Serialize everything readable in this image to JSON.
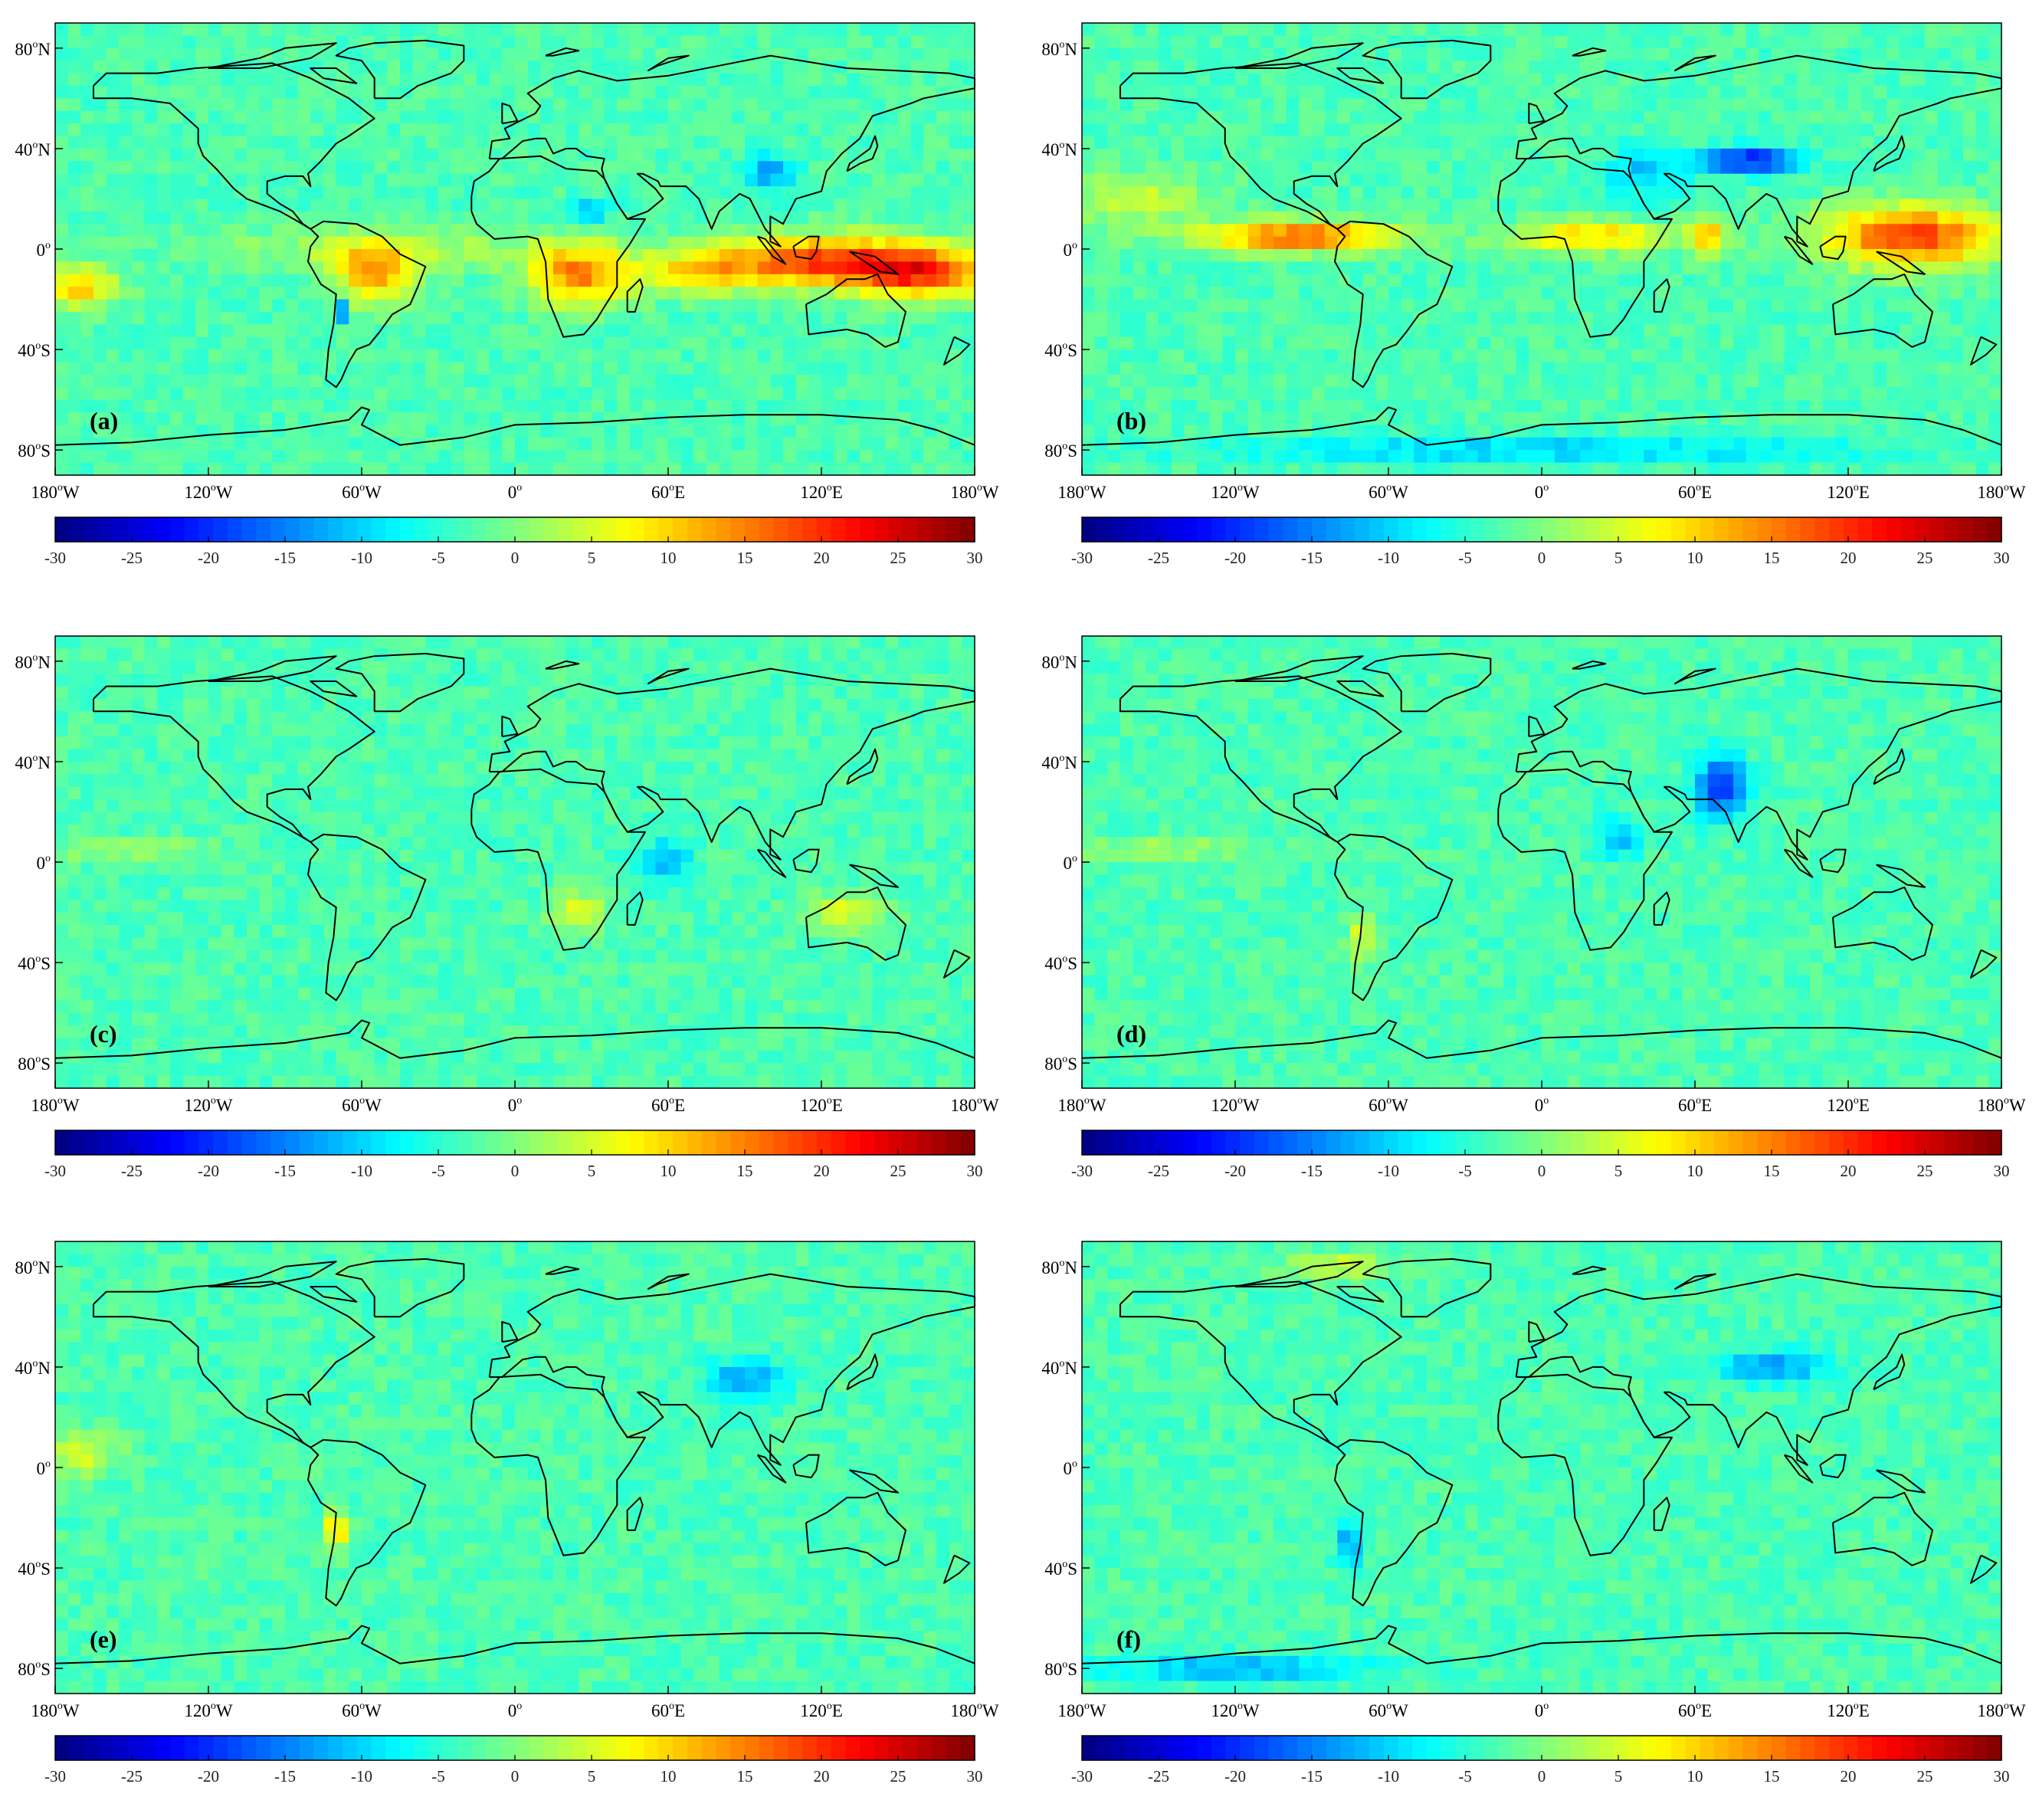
{
  "figure": {
    "lat_tick_labels": [
      {
        "deg": "80",
        "hem": "N"
      },
      {
        "deg": "40",
        "hem": "N"
      },
      {
        "deg": "0",
        "hem": ""
      },
      {
        "deg": "40",
        "hem": "S"
      },
      {
        "deg": "80",
        "hem": "S"
      }
    ],
    "lon_tick_labels": [
      {
        "deg": "180",
        "hem": "W"
      },
      {
        "deg": "120",
        "hem": "W"
      },
      {
        "deg": "60",
        "hem": "W"
      },
      {
        "deg": "0",
        "hem": ""
      },
      {
        "deg": "60",
        "hem": "E"
      },
      {
        "deg": "120",
        "hem": "E"
      },
      {
        "deg": "180",
        "hem": "W"
      }
    ],
    "colorbar": {
      "min": -30,
      "max": 30,
      "tick_labels": [
        "-30",
        "-25",
        "-20",
        "-15",
        "-10",
        "-5",
        "0",
        "5",
        "10",
        "15",
        "20",
        "25",
        "30"
      ],
      "colormap": "jet"
    }
  },
  "panels": [
    {
      "label": "(a)",
      "hotspots": [
        {
          "lon": 120,
          "lat": -5,
          "v": 22,
          "rx": 45,
          "ry": 10
        },
        {
          "lon": 160,
          "lat": -10,
          "v": 18,
          "rx": 25,
          "ry": 10
        },
        {
          "lon": 25,
          "lat": -10,
          "v": 18,
          "rx": 20,
          "ry": 12
        },
        {
          "lon": -55,
          "lat": -10,
          "v": 15,
          "rx": 15,
          "ry": 12
        },
        {
          "lon": -170,
          "lat": -15,
          "v": 14,
          "rx": 15,
          "ry": 8
        },
        {
          "lon": 70,
          "lat": -10,
          "v": 10,
          "rx": 20,
          "ry": 8
        },
        {
          "lon": -68,
          "lat": -25,
          "v": -20,
          "rx": 2,
          "ry": 3
        },
        {
          "lon": 100,
          "lat": 30,
          "v": -10,
          "rx": 10,
          "ry": 8
        },
        {
          "lon": 30,
          "lat": 15,
          "v": -8,
          "rx": 8,
          "ry": 5
        },
        {
          "lon": -50,
          "lat": 0,
          "v": 6,
          "rx": 60,
          "ry": 8
        }
      ]
    },
    {
      "label": "(b)",
      "hotspots": [
        {
          "lon": 145,
          "lat": 5,
          "v": 22,
          "rx": 35,
          "ry": 12
        },
        {
          "lon": -95,
          "lat": 5,
          "v": 20,
          "rx": 40,
          "ry": 6
        },
        {
          "lon": 20,
          "lat": 5,
          "v": 14,
          "rx": 30,
          "ry": 6
        },
        {
          "lon": 65,
          "lat": 5,
          "v": 14,
          "rx": 8,
          "ry": 8
        },
        {
          "lon": 80,
          "lat": 35,
          "v": -20,
          "rx": 20,
          "ry": 5
        },
        {
          "lon": 0,
          "lat": -80,
          "v": -8,
          "rx": 120,
          "ry": 5
        },
        {
          "lon": -160,
          "lat": 20,
          "v": 7,
          "rx": 30,
          "ry": 10
        },
        {
          "lon": 40,
          "lat": 30,
          "v": -8,
          "rx": 15,
          "ry": 10
        }
      ]
    },
    {
      "label": "(c)",
      "hotspots": [
        {
          "lon": 25,
          "lat": -20,
          "v": 10,
          "rx": 10,
          "ry": 8
        },
        {
          "lon": 130,
          "lat": -20,
          "v": 8,
          "rx": 15,
          "ry": 8
        },
        {
          "lon": 60,
          "lat": 0,
          "v": -8,
          "rx": 10,
          "ry": 10
        },
        {
          "lon": -150,
          "lat": 5,
          "v": 6,
          "rx": 30,
          "ry": 4
        }
      ]
    },
    {
      "label": "(d)",
      "hotspots": [
        {
          "lon": 70,
          "lat": 30,
          "v": -18,
          "rx": 10,
          "ry": 12
        },
        {
          "lon": 30,
          "lat": 10,
          "v": -8,
          "rx": 10,
          "ry": 8
        },
        {
          "lon": -150,
          "lat": 5,
          "v": 6,
          "rx": 30,
          "ry": 4
        },
        {
          "lon": -70,
          "lat": -30,
          "v": 10,
          "rx": 5,
          "ry": 10
        }
      ]
    },
    {
      "label": "(e)",
      "hotspots": [
        {
          "lon": -70,
          "lat": -25,
          "v": 15,
          "rx": 4,
          "ry": 8
        },
        {
          "lon": 90,
          "lat": 35,
          "v": -10,
          "rx": 15,
          "ry": 8
        },
        {
          "lon": -170,
          "lat": 5,
          "v": 8,
          "rx": 15,
          "ry": 8
        }
      ]
    },
    {
      "label": "(f)",
      "hotspots": [
        {
          "lon": 90,
          "lat": 40,
          "v": -12,
          "rx": 20,
          "ry": 6
        },
        {
          "lon": -120,
          "lat": -80,
          "v": -10,
          "rx": 50,
          "ry": 5
        },
        {
          "lon": -75,
          "lat": -30,
          "v": -10,
          "rx": 5,
          "ry": 10
        },
        {
          "lon": -80,
          "lat": 80,
          "v": 8,
          "rx": 20,
          "ry": 5
        }
      ]
    }
  ]
}
